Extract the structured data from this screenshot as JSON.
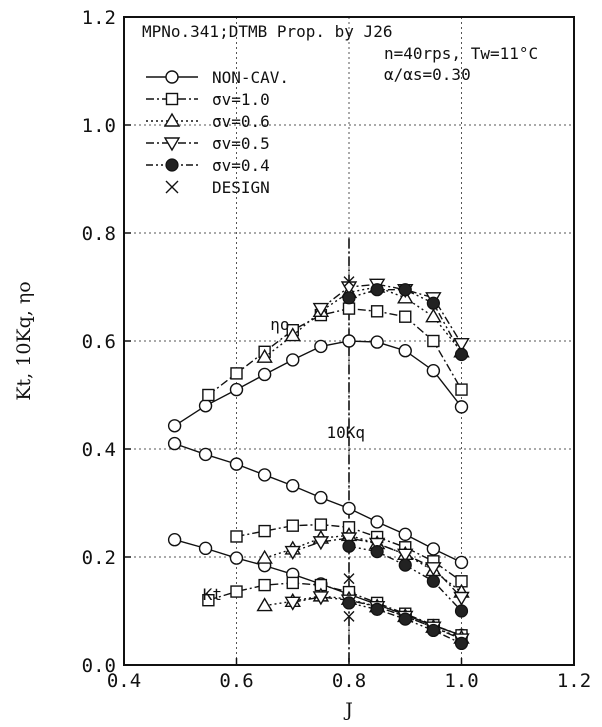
{
  "chart_data": {
    "type": "line",
    "xlabel": "J",
    "ylabel": "Kt, 10Kq, ηo",
    "xlim": [
      0.4,
      1.2
    ],
    "ylim": [
      0.0,
      1.2
    ],
    "x_ticks": [
      "0.4",
      "0.6",
      "0.8",
      "1.0",
      "1.2"
    ],
    "y_ticks": [
      "0.0",
      "0.2",
      "0.4",
      "0.6",
      "0.8",
      "1.0",
      "1.2"
    ],
    "grid": true,
    "header": [
      "MPNo.341;DTMB Prop. by J26",
      "n=40rps, Tw=11°C",
      "α/αs=0.30"
    ],
    "legend_position": "top-left",
    "legend": [
      {
        "label": "NON-CAV.",
        "marker": "circle-open",
        "line": "solid"
      },
      {
        "label": "σv=1.0",
        "marker": "square-open",
        "line": "dashdot"
      },
      {
        "label": "σv=0.6",
        "marker": "triangle-up-open",
        "line": "dotted"
      },
      {
        "label": "σv=0.5",
        "marker": "triangle-down-open",
        "line": "dashdot"
      },
      {
        "label": "σv=0.4",
        "marker": "circle-filled",
        "line": "dashdotdot"
      },
      {
        "label": "DESIGN",
        "marker": "cross",
        "line": "none"
      }
    ],
    "annotations": [
      {
        "text": "ηo",
        "x": 0.66,
        "y": 0.62
      },
      {
        "text": "10Kq",
        "x": 0.76,
        "y": 0.42
      },
      {
        "text": "Kt",
        "x": 0.54,
        "y": 0.12
      }
    ],
    "design_line_x": 0.8,
    "design_points": [
      {
        "x": 0.8,
        "y": 0.71
      },
      {
        "x": 0.8,
        "y": 0.16
      },
      {
        "x": 0.8,
        "y": 0.09
      }
    ],
    "series": [
      {
        "name": "NON-CAV.",
        "quantity": "ηo",
        "x": [
          0.49,
          0.545,
          0.6,
          0.65,
          0.7,
          0.75,
          0.8,
          0.85,
          0.9,
          0.95,
          1.0
        ],
        "y": [
          0.443,
          0.48,
          0.51,
          0.538,
          0.565,
          0.59,
          0.6,
          0.598,
          0.582,
          0.545,
          0.478
        ]
      },
      {
        "name": "NON-CAV.",
        "quantity": "10Kq",
        "x": [
          0.49,
          0.545,
          0.6,
          0.65,
          0.7,
          0.75,
          0.8,
          0.85,
          0.9,
          0.95,
          1.0
        ],
        "y": [
          0.41,
          0.39,
          0.372,
          0.352,
          0.332,
          0.31,
          0.29,
          0.265,
          0.242,
          0.215,
          0.19
        ]
      },
      {
        "name": "NON-CAV.",
        "quantity": "Kt",
        "x": [
          0.49,
          0.545,
          0.6,
          0.65,
          0.7,
          0.75,
          0.8,
          0.85,
          0.9,
          0.95,
          1.0
        ],
        "y": [
          0.232,
          0.216,
          0.198,
          0.184,
          0.168,
          0.15,
          0.131,
          0.112,
          0.093,
          0.073,
          0.055
        ]
      },
      {
        "name": "σv=1.0",
        "quantity": "ηo",
        "x": [
          0.55,
          0.6,
          0.65,
          0.7,
          0.75,
          0.8,
          0.85,
          0.9,
          0.95,
          1.0
        ],
        "y": [
          0.5,
          0.54,
          0.58,
          0.62,
          0.648,
          0.66,
          0.655,
          0.645,
          0.6,
          0.51
        ]
      },
      {
        "name": "σv=1.0",
        "quantity": "10Kq",
        "x": [
          0.6,
          0.65,
          0.7,
          0.75,
          0.8,
          0.85,
          0.9,
          0.95,
          1.0
        ],
        "y": [
          0.238,
          0.248,
          0.258,
          0.26,
          0.255,
          0.237,
          0.218,
          0.192,
          0.155
        ]
      },
      {
        "name": "σv=1.0",
        "quantity": "Kt",
        "x": [
          0.55,
          0.6,
          0.65,
          0.7,
          0.75,
          0.8,
          0.85,
          0.9,
          0.95,
          1.0
        ],
        "y": [
          0.12,
          0.136,
          0.148,
          0.152,
          0.148,
          0.135,
          0.115,
          0.095,
          0.074,
          0.055
        ]
      },
      {
        "name": "σv=0.6",
        "quantity": "ηo",
        "x": [
          0.65,
          0.7,
          0.75,
          0.8,
          0.85,
          0.9,
          0.95,
          1.0
        ],
        "y": [
          0.57,
          0.61,
          0.655,
          0.69,
          0.7,
          0.68,
          0.645,
          0.58
        ]
      },
      {
        "name": "σv=0.6",
        "quantity": "10Kq",
        "x": [
          0.65,
          0.7,
          0.75,
          0.8,
          0.85,
          0.9,
          0.95,
          1.0
        ],
        "y": [
          0.198,
          0.215,
          0.235,
          0.24,
          0.225,
          0.205,
          0.175,
          0.135
        ]
      },
      {
        "name": "σv=0.6",
        "quantity": "Kt",
        "x": [
          0.65,
          0.7,
          0.75,
          0.8,
          0.85,
          0.9,
          0.95,
          1.0
        ],
        "y": [
          0.11,
          0.118,
          0.128,
          0.122,
          0.108,
          0.09,
          0.07,
          0.05
        ]
      },
      {
        "name": "σv=0.5",
        "quantity": "ηo",
        "x": [
          0.75,
          0.8,
          0.85,
          0.9,
          0.95,
          1.0
        ],
        "y": [
          0.66,
          0.7,
          0.705,
          0.695,
          0.68,
          0.595
        ]
      },
      {
        "name": "σv=0.5",
        "quantity": "10Kq",
        "x": [
          0.7,
          0.75,
          0.8,
          0.85,
          0.9,
          0.95,
          1.0
        ],
        "y": [
          0.21,
          0.228,
          0.235,
          0.225,
          0.205,
          0.18,
          0.125
        ]
      },
      {
        "name": "σv=0.5",
        "quantity": "Kt",
        "x": [
          0.7,
          0.75,
          0.8,
          0.85,
          0.9,
          0.95,
          1.0
        ],
        "y": [
          0.116,
          0.126,
          0.12,
          0.108,
          0.09,
          0.07,
          0.048
        ]
      },
      {
        "name": "σv=0.4",
        "quantity": "ηo",
        "x": [
          0.8,
          0.85,
          0.9,
          0.95,
          1.0
        ],
        "y": [
          0.68,
          0.695,
          0.695,
          0.67,
          0.575
        ]
      },
      {
        "name": "σv=0.4",
        "quantity": "10Kq",
        "x": [
          0.8,
          0.85,
          0.9,
          0.95,
          1.0
        ],
        "y": [
          0.22,
          0.21,
          0.185,
          0.155,
          0.1
        ]
      },
      {
        "name": "σv=0.4",
        "quantity": "Kt",
        "x": [
          0.8,
          0.85,
          0.9,
          0.95,
          1.0
        ],
        "y": [
          0.115,
          0.103,
          0.085,
          0.064,
          0.04
        ]
      }
    ]
  }
}
